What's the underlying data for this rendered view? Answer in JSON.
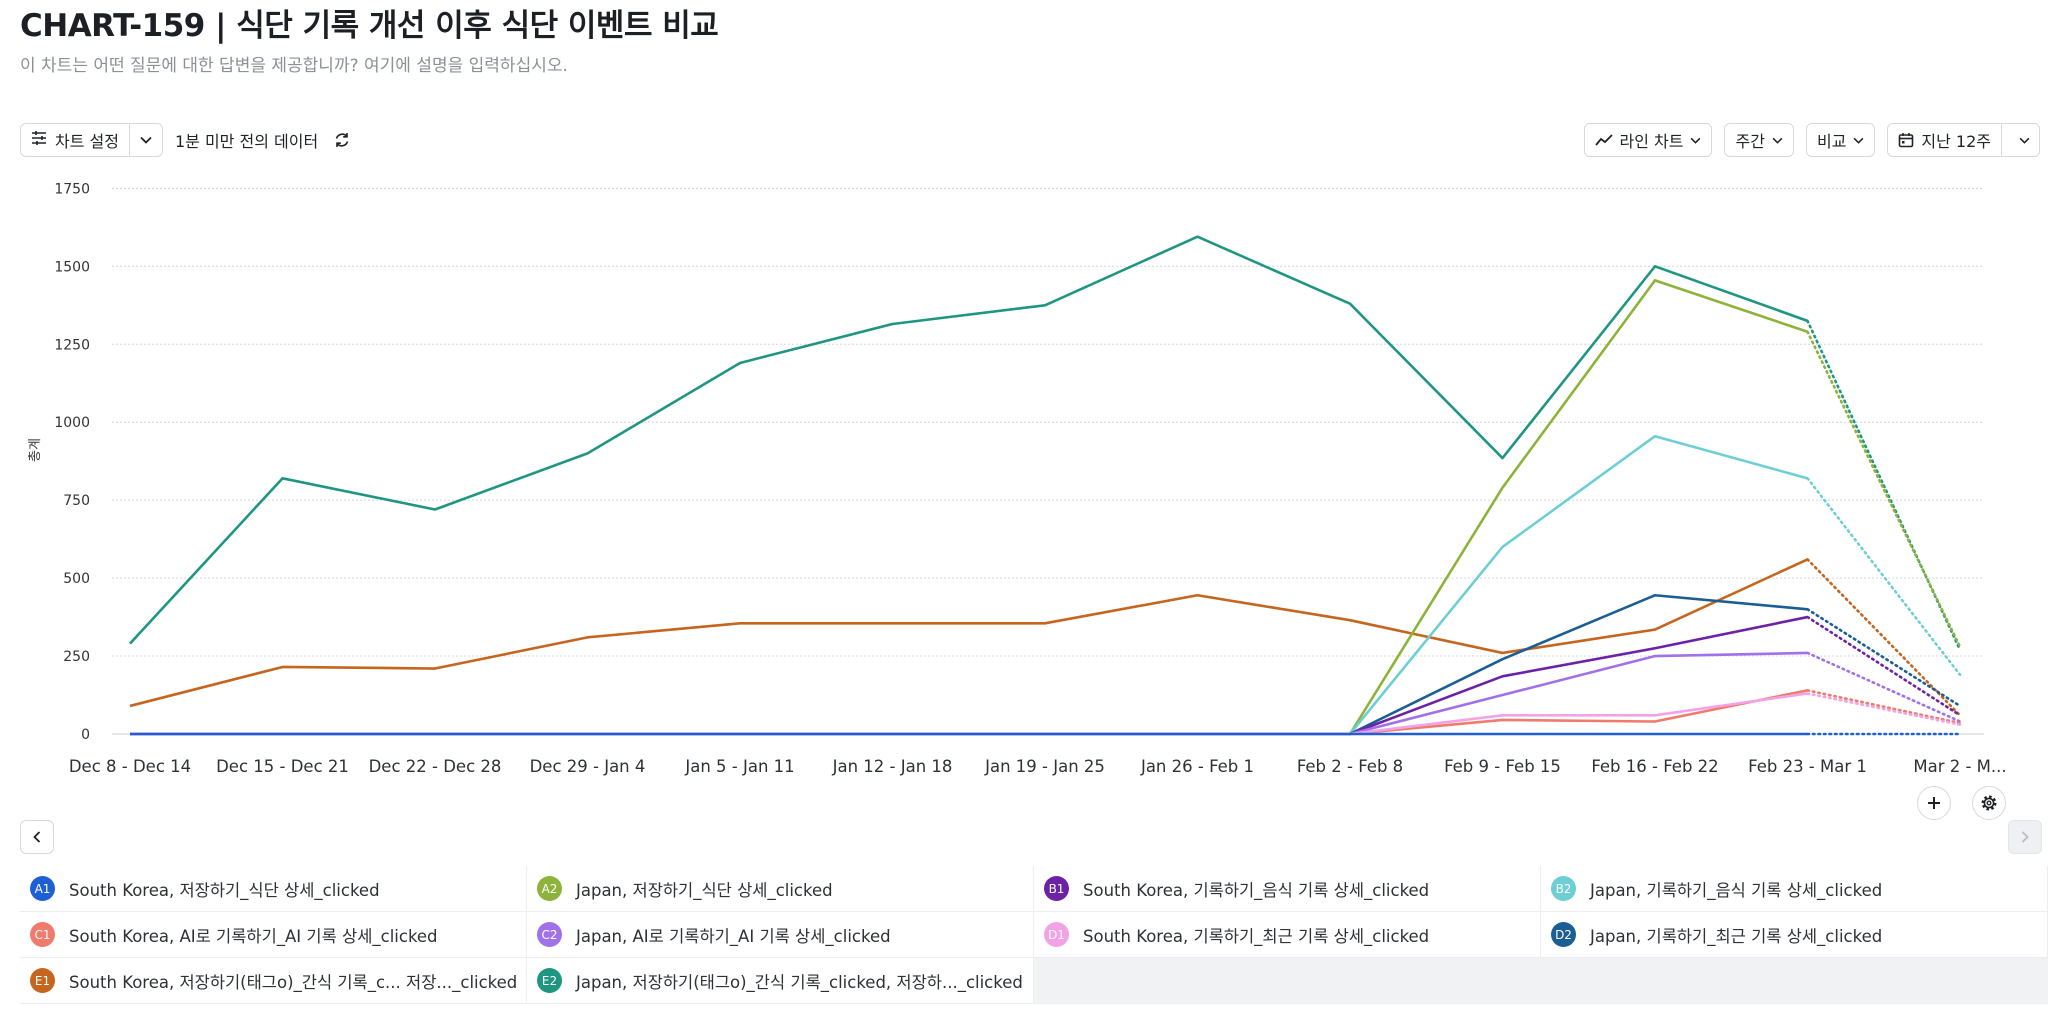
{
  "header": {
    "title": "CHART-159 | 식단 기록 개선 이후 식단 이벤트 비교",
    "subtitle": "이 차트는 어떤 질문에 대한 답변을 제공합니까? 여기에 설명을 입력하십시오."
  },
  "toolbar": {
    "settings_label": "차트 설정",
    "freshness": "1분 미만 전의 데이터",
    "chart_type_label": "라인 차트",
    "interval_label": "주간",
    "compare_label": "비교",
    "range_label": "지난 12주"
  },
  "chart_data": {
    "type": "line",
    "ylabel": "총계",
    "ylim": [
      0,
      1750
    ],
    "yticks": [
      0,
      250,
      500,
      750,
      1000,
      1250,
      1500,
      1750
    ],
    "grid": true,
    "categories": [
      "Dec 8 - Dec 14",
      "Dec 15 - Dec 21",
      "Dec 22 - Dec 28",
      "Dec 29 - Jan 4",
      "Jan 5 - Jan 11",
      "Jan 12 - Jan 18",
      "Jan 19 - Jan 25",
      "Jan 26 - Feb 1",
      "Feb 2 - Feb 8",
      "Feb 9 - Feb 15",
      "Feb 16 - Feb 22",
      "Feb 23 - Mar 1",
      "Mar 2 - M..."
    ],
    "incomplete_last_period": true,
    "series": [
      {
        "id": "E2",
        "name": "Japan, 저장하기(태그o)_간식 기록_clicked, 저장하..._clicked",
        "color": "#1f9682",
        "values": [
          290,
          820,
          720,
          900,
          1190,
          1315,
          1375,
          1595,
          1380,
          885,
          1500,
          1325,
          270
        ]
      },
      {
        "id": "E1",
        "name": "South Korea, 저장하기(태그o)_간식 기록_c...  저장..._clicked",
        "color": "#c5651e",
        "values": [
          90,
          215,
          210,
          310,
          355,
          355,
          355,
          445,
          365,
          260,
          335,
          560,
          60
        ]
      },
      {
        "id": "A2",
        "name": "Japan, 저장하기_식단 상세_clicked",
        "color": "#8db33a",
        "values": [
          0,
          0,
          0,
          0,
          0,
          0,
          0,
          0,
          0,
          790,
          1455,
          1290,
          280
        ]
      },
      {
        "id": "B2",
        "name": "Japan, 기록하기_음식 기록 상세_clicked",
        "color": "#6dcfd3",
        "values": [
          0,
          0,
          0,
          0,
          0,
          0,
          0,
          0,
          0,
          600,
          955,
          820,
          190
        ]
      },
      {
        "id": "D2",
        "name": "Japan, 기록하기_최근 기록 상세_clicked",
        "color": "#1b5e93",
        "values": [
          0,
          0,
          0,
          0,
          0,
          0,
          0,
          0,
          0,
          240,
          445,
          400,
          90
        ]
      },
      {
        "id": "B1",
        "name": "South Korea, 기록하기_음식 기록 상세_clicked",
        "color": "#6c21a7",
        "values": [
          0,
          0,
          0,
          0,
          0,
          0,
          0,
          0,
          0,
          185,
          275,
          375,
          60
        ]
      },
      {
        "id": "C2",
        "name": "Japan, AI로 기록하기_AI 기록 상세_clicked",
        "color": "#a071e8",
        "values": [
          0,
          0,
          0,
          0,
          0,
          0,
          0,
          0,
          0,
          125,
          250,
          260,
          40
        ]
      },
      {
        "id": "C1",
        "name": "South Korea, AI로 기록하기_AI 기록 상세_clicked",
        "color": "#f07a6b",
        "values": [
          0,
          0,
          0,
          0,
          0,
          0,
          0,
          0,
          0,
          45,
          40,
          140,
          35
        ]
      },
      {
        "id": "D1",
        "name": "South Korea, 기록하기_최근 기록 상세_clicked",
        "color": "#f2a3e6",
        "values": [
          0,
          0,
          0,
          0,
          0,
          0,
          0,
          0,
          0,
          60,
          60,
          130,
          30
        ]
      },
      {
        "id": "A1",
        "name": "South Korea, 저장하기_식단 상세_clicked",
        "color": "#1e5fd6",
        "values": [
          0,
          0,
          0,
          0,
          0,
          0,
          0,
          0,
          0,
          0,
          0,
          0,
          0
        ]
      }
    ]
  },
  "legend": [
    {
      "id": "A1",
      "label": "South Korea, 저장하기_식단 상세_clicked",
      "color": "#1e5fd6"
    },
    {
      "id": "A2",
      "label": "Japan, 저장하기_식단 상세_clicked",
      "color": "#8db33a"
    },
    {
      "id": "B1",
      "label": "South Korea, 기록하기_음식 기록 상세_clicked",
      "color": "#6c21a7"
    },
    {
      "id": "B2",
      "label": "Japan, 기록하기_음식 기록 상세_clicked",
      "color": "#6dcfd3"
    },
    {
      "id": "C1",
      "label": "South Korea, AI로 기록하기_AI 기록 상세_clicked",
      "color": "#f07a6b"
    },
    {
      "id": "C2",
      "label": "Japan, AI로 기록하기_AI 기록 상세_clicked",
      "color": "#a071e8"
    },
    {
      "id": "D1",
      "label": "South Korea, 기록하기_최근 기록 상세_clicked",
      "color": "#f2a3e6"
    },
    {
      "id": "D2",
      "label": "Japan, 기록하기_최근 기록 상세_clicked",
      "color": "#1b5e93"
    },
    {
      "id": "E1",
      "label": "South Korea, 저장하기(태그o)_간식 기록_c...  저장..._clicked",
      "color": "#c5651e"
    },
    {
      "id": "E2",
      "label": "Japan, 저장하기(태그o)_간식 기록_clicked, 저장하..._clicked",
      "color": "#1f9682"
    }
  ],
  "icons": {
    "settings": "sliders-icon",
    "caret": "chevron-down-icon",
    "refresh": "refresh-icon",
    "line_chart": "line-chart-icon",
    "calendar": "calendar-icon",
    "add": "plus-icon",
    "gear": "gear-icon",
    "prev": "chevron-left-icon",
    "next": "chevron-right-icon"
  }
}
